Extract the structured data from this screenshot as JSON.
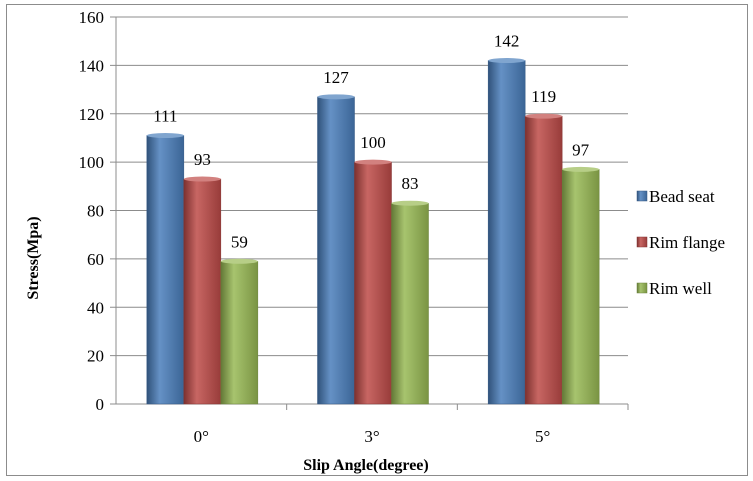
{
  "chart_data": {
    "type": "bar",
    "title": "",
    "xlabel": "Slip Angle(degree)",
    "ylabel": "Stress(Mpa)",
    "categories": [
      "0°",
      "3°",
      "5°"
    ],
    "ylim": [
      0,
      160
    ],
    "yticks": [
      0,
      20,
      40,
      60,
      80,
      100,
      120,
      140,
      160
    ],
    "grid": true,
    "legend_position": "right",
    "series": [
      {
        "name": "Bead seat",
        "values": [
          111,
          127,
          142
        ],
        "color": "#4a7ebb"
      },
      {
        "name": "Rim flange",
        "values": [
          93,
          100,
          119
        ],
        "color": "#be4b48"
      },
      {
        "name": "Rim well",
        "values": [
          59,
          83,
          97
        ],
        "color": "#98b954"
      }
    ]
  }
}
